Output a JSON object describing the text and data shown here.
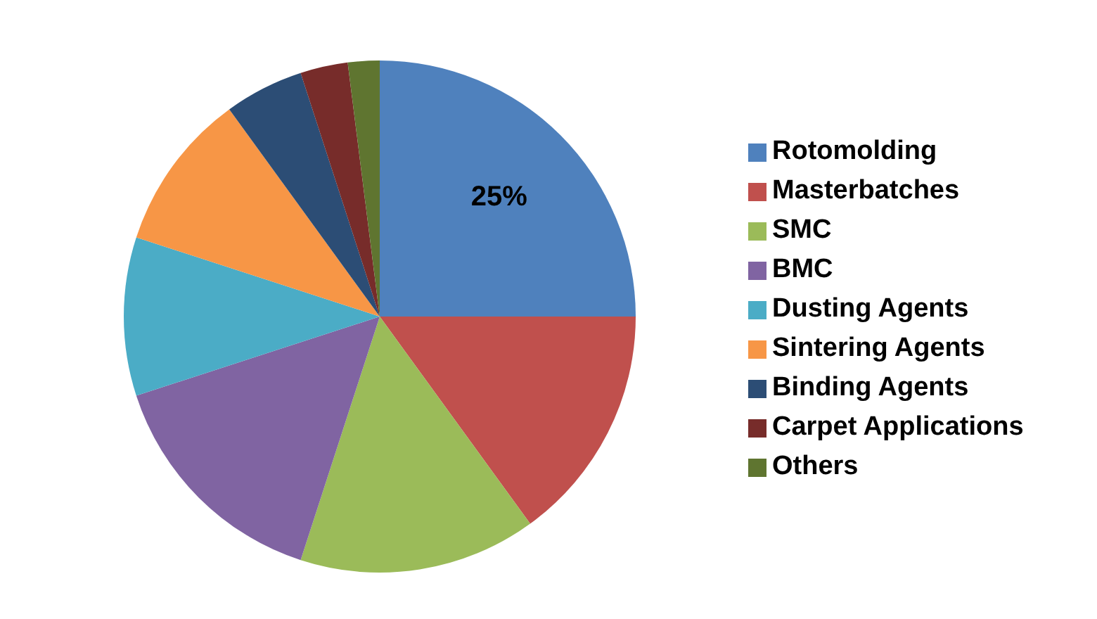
{
  "chart_data": {
    "type": "pie",
    "categories": [
      "Rotomolding",
      "Masterbatches",
      "SMC",
      "BMC",
      "Dusting Agents",
      "Sintering Agents",
      "Binding Agents",
      "Carpet Applications",
      "Others"
    ],
    "values": [
      25,
      15,
      15,
      15,
      10,
      10,
      5,
      3,
      2
    ],
    "value_labels": [
      "25%",
      null,
      null,
      null,
      null,
      null,
      null,
      null,
      null
    ],
    "colors": [
      "#4f81bd",
      "#c0504d",
      "#9bbb59",
      "#8064a2",
      "#4bacc6",
      "#f79646",
      "#2c4d75",
      "#772c2a",
      "#5f7530"
    ],
    "legend": "right"
  }
}
